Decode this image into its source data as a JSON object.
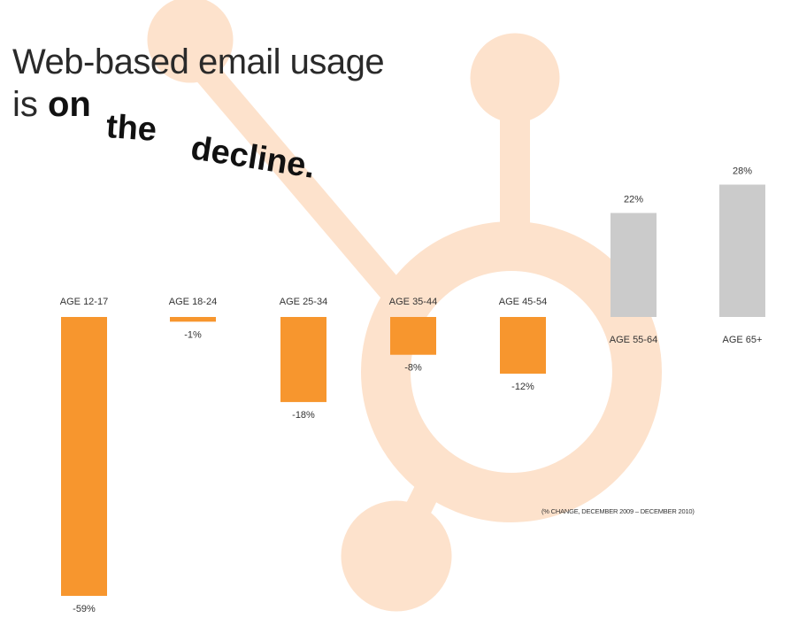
{
  "title": {
    "line1": "Web-based email usage",
    "line2_prefix": "is ",
    "w_on": "on",
    "w_the": "the",
    "w_decline": "decline."
  },
  "footnote": "(% CHANGE, DECEMBER 2009 – DECEMBER 2010)",
  "background_logo": {
    "name": "sprocket-logo-watermark",
    "color": "#fde2cc"
  },
  "colors": {
    "negative": "#f7962e",
    "positive": "#cbcbcb"
  },
  "chart_data": {
    "type": "bar",
    "categories": [
      "AGE 12-17",
      "AGE 18-24",
      "AGE 25-34",
      "AGE 35-44",
      "AGE 45-54",
      "AGE 55-64",
      "AGE 65+"
    ],
    "values": [
      -59,
      -1,
      -18,
      -8,
      -12,
      22,
      28
    ],
    "value_labels": [
      "-59%",
      "-1%",
      "-18%",
      "-8%",
      "-12%",
      "22%",
      "28%"
    ],
    "unit": "%",
    "title": "Web-based email usage is on the decline.",
    "xlabel": "",
    "ylabel": "",
    "ylim": [
      -59,
      28
    ],
    "grid": false,
    "legend": "none"
  }
}
